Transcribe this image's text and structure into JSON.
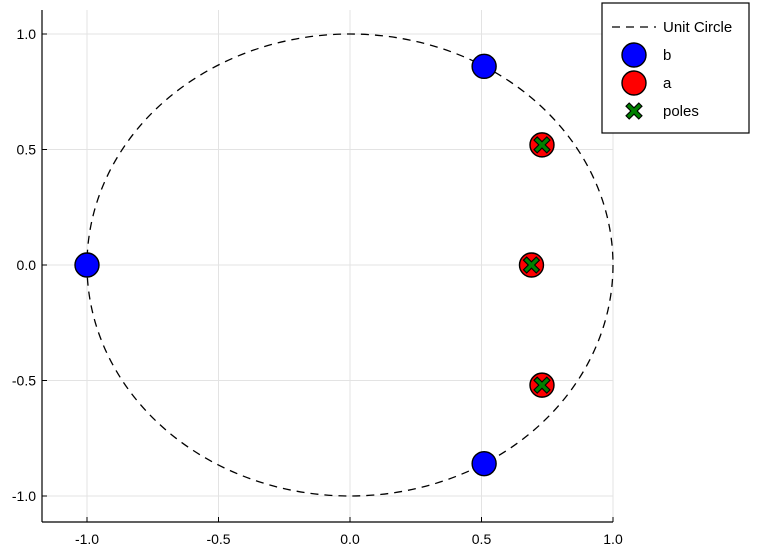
{
  "chart_data": {
    "type": "scatter",
    "title": "",
    "xlabel": "",
    "ylabel": "",
    "xlim": [
      -1.16,
      1.0
    ],
    "ylim": [
      -1.12,
      1.1
    ],
    "grid": true,
    "legend_position": "top-right",
    "x_ticks": [
      -1.0,
      -0.5,
      0.0,
      0.5,
      1.0
    ],
    "x_tick_labels": [
      "-1.0",
      "-0.5",
      "0.0",
      "0.5",
      "1.0"
    ],
    "y_ticks": [
      1.0,
      0.5,
      0.0,
      -0.5,
      -1.0
    ],
    "y_tick_labels": [
      "1.0",
      "0.5",
      "0.0",
      "-0.5",
      "-1.0"
    ],
    "series": [
      {
        "name": "Unit Circle",
        "kind": "line",
        "style": "dashed",
        "color": "#000000",
        "shape": "circle",
        "center": [
          0,
          0
        ],
        "radius": 1.0
      },
      {
        "name": "b",
        "kind": "marker",
        "marker": "circle",
        "color": "#0000ff",
        "points": [
          {
            "x": -1.0,
            "y": 0.0
          },
          {
            "x": 0.51,
            "y": 0.86
          },
          {
            "x": 0.51,
            "y": -0.86
          }
        ]
      },
      {
        "name": "a",
        "kind": "marker",
        "marker": "circle",
        "color": "#ff0000",
        "points": [
          {
            "x": 0.73,
            "y": 0.52
          },
          {
            "x": 0.69,
            "y": 0.0
          },
          {
            "x": 0.73,
            "y": -0.52
          }
        ]
      },
      {
        "name": "poles",
        "kind": "marker",
        "marker": "x",
        "color": "#008000",
        "points": [
          {
            "x": 0.73,
            "y": 0.52
          },
          {
            "x": 0.69,
            "y": 0.0
          },
          {
            "x": 0.73,
            "y": -0.52
          }
        ]
      }
    ]
  }
}
